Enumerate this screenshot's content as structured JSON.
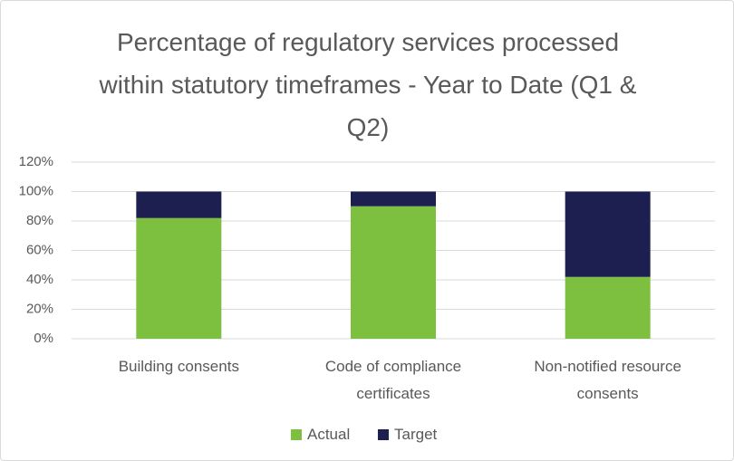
{
  "chart_data": {
    "type": "stacked_bar",
    "title": "Percentage of regulatory services processed within statutory timeframes - Year to Date (Q1 & Q2)",
    "categories": [
      "Building consents",
      "Code of compliance certificates",
      "Non-notified resource consents"
    ],
    "series": [
      {
        "name": "Actual",
        "color": "#7dbf3f",
        "values": [
          82,
          90,
          42
        ]
      },
      {
        "name": "Target",
        "color": "#1c1f4f",
        "values": [
          18,
          10,
          58
        ]
      }
    ],
    "ylim": [
      0,
      120
    ],
    "yticks": [
      {
        "value": 0,
        "label": "0%"
      },
      {
        "value": 20,
        "label": "20%"
      },
      {
        "value": 40,
        "label": "40%"
      },
      {
        "value": 60,
        "label": "60%"
      },
      {
        "value": 80,
        "label": "80%"
      },
      {
        "value": 100,
        "label": "100%"
      },
      {
        "value": 120,
        "label": "120%"
      }
    ],
    "grid": true,
    "legend": "bottom"
  }
}
